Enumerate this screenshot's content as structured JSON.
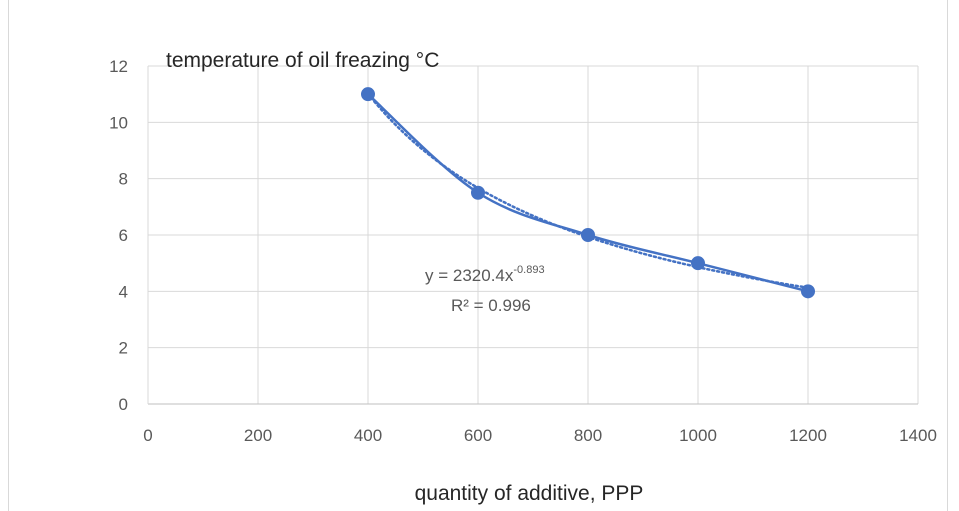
{
  "chart_data": {
    "type": "scatter",
    "title": "temperature of oil freazing °C",
    "xlabel": "quantity of additive, PPP",
    "ylabel": "",
    "xlim": [
      0,
      1400
    ],
    "ylim": [
      0,
      12
    ],
    "xticks": [
      0,
      200,
      400,
      600,
      800,
      1000,
      1200,
      1400
    ],
    "yticks": [
      0,
      2,
      4,
      6,
      8,
      10,
      12
    ],
    "grid": true,
    "legend": "none",
    "series": [
      {
        "x": [
          400,
          600,
          800,
          1000,
          1200
        ],
        "y": [
          11,
          7.5,
          6,
          5,
          4
        ],
        "color": "#4472c4",
        "line": "smooth",
        "markers": true
      }
    ],
    "trendline": {
      "kind": "power",
      "coefficient": 2320.4,
      "exponent": -0.893,
      "style": "dotted",
      "color": "#4472c4",
      "equation_main": "y = 2320.4x",
      "equation_exponent": "-0.893",
      "r2_label": "R² = 0.996"
    }
  }
}
